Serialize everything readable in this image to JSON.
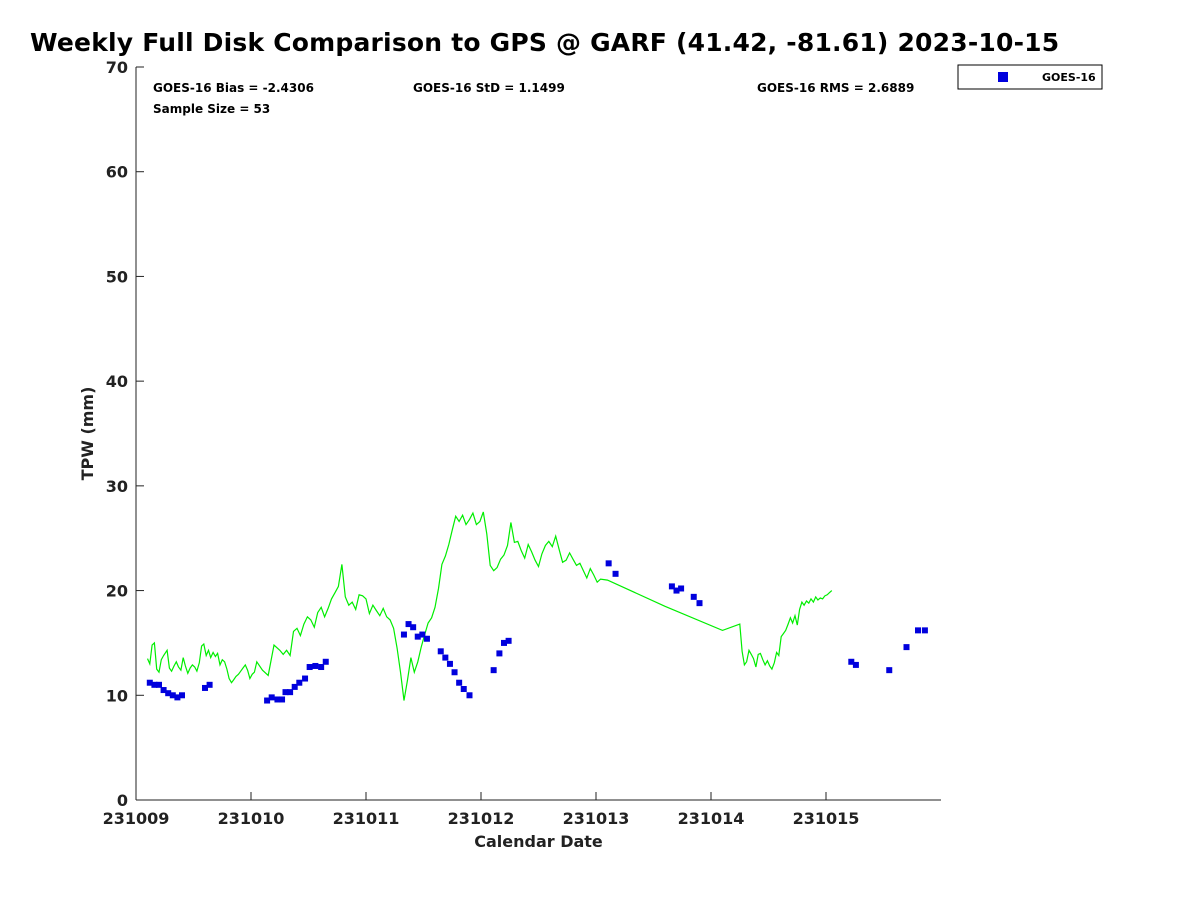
{
  "chart_data": {
    "type": "scatter",
    "title": "Weekly Full Disk Comparison to GPS @ GARF (41.42, -81.61) 2023-10-15",
    "xlabel": "Calendar Date",
    "ylabel": "TPW (mm)",
    "xlim": [
      231009,
      231016
    ],
    "ylim": [
      0,
      70
    ],
    "x_ticks": [
      231009,
      231010,
      231011,
      231012,
      231013,
      231014,
      231015
    ],
    "x_tick_labels": [
      "231009",
      "231010",
      "231011",
      "231012",
      "231013",
      "231014",
      "231015"
    ],
    "y_ticks": [
      0,
      10,
      20,
      30,
      40,
      50,
      60,
      70
    ],
    "grid": false,
    "legend_position": "outside-top-right",
    "stats": {
      "bias": "GOES-16 Bias = -2.4306",
      "std": "GOES-16 StD = 1.1499",
      "rms": "GOES-16 RMS = 2.6889",
      "sample_size": "Sample Size = 53"
    },
    "series": [
      {
        "name": "GPS",
        "kind": "line",
        "color": "#00ee00",
        "x": [
          0.0,
          0.02,
          0.04,
          0.06,
          0.08,
          0.1,
          0.12,
          0.14,
          0.17,
          0.19,
          0.21,
          0.23,
          0.25,
          0.27,
          0.29,
          0.31,
          0.33,
          0.35,
          0.37,
          0.39,
          0.41,
          0.43,
          0.45,
          0.47,
          0.49,
          0.51,
          0.53,
          0.55,
          0.57,
          0.59,
          0.61,
          0.63,
          0.65,
          0.67,
          0.69,
          0.71,
          0.73,
          0.75,
          0.77,
          0.79,
          0.81,
          0.83,
          0.85,
          0.87,
          0.89,
          0.91,
          0.93,
          0.95,
          1.0,
          1.05,
          1.1,
          1.15,
          1.18,
          1.21,
          1.24,
          1.27,
          1.3,
          1.33,
          1.36,
          1.39,
          1.42,
          1.45,
          1.48,
          1.51,
          1.54,
          1.57,
          1.6,
          1.63,
          1.66,
          1.69,
          1.72,
          1.75,
          1.78,
          1.81,
          1.84,
          1.87,
          1.9,
          1.93,
          1.96,
          1.99,
          2.02,
          2.05,
          2.08,
          2.11,
          2.14,
          2.17,
          2.2,
          2.23,
          2.26,
          2.29,
          2.32,
          2.35,
          2.38,
          2.41,
          2.44,
          2.47,
          2.5,
          2.53,
          2.56,
          2.59,
          2.62,
          2.65,
          2.68,
          2.71,
          2.74,
          2.77,
          2.8,
          2.83,
          2.86,
          2.89,
          2.92,
          2.95,
          2.98,
          3.01,
          3.04,
          3.07,
          3.1,
          3.13,
          3.16,
          3.19,
          3.22,
          3.25,
          3.28,
          3.31,
          3.34,
          3.37,
          3.4,
          3.43,
          3.46,
          3.49,
          3.52,
          3.55,
          3.58,
          3.61,
          3.64,
          3.67,
          3.7,
          3.73,
          3.76,
          3.79,
          3.82,
          3.85,
          3.88,
          3.91,
          3.94,
          4.0,
          4.5,
          5.0,
          5.15,
          5.17,
          5.19,
          5.21,
          5.23,
          5.25,
          5.27,
          5.29,
          5.31,
          5.33,
          5.35,
          5.37,
          5.39,
          5.41,
          5.43,
          5.45,
          5.47,
          5.49,
          5.51,
          5.53,
          5.55,
          5.57,
          5.59,
          5.61,
          5.63,
          5.65,
          5.67,
          5.69,
          5.71,
          5.73,
          5.75,
          5.77,
          5.79,
          5.81,
          5.83,
          5.85,
          5.87,
          5.89,
          5.91,
          5.93,
          5.95
        ],
        "y": [
          13.5,
          13.0,
          14.8,
          15.0,
          12.5,
          12.2,
          13.4,
          13.8,
          14.3,
          12.6,
          12.3,
          12.8,
          13.2,
          12.7,
          12.4,
          13.6,
          12.8,
          12.1,
          12.6,
          12.9,
          12.7,
          12.3,
          13.1,
          14.7,
          14.9,
          13.8,
          14.3,
          13.6,
          14.1,
          13.7,
          14.0,
          12.9,
          13.4,
          13.2,
          12.5,
          11.6,
          11.2,
          11.5,
          11.8,
          12.0,
          12.3,
          12.6,
          12.9,
          12.4,
          11.6,
          12.0,
          12.2,
          13.2,
          12.4,
          11.9,
          14.8,
          14.3,
          13.9,
          14.3,
          13.8,
          16.1,
          16.4,
          15.7,
          16.8,
          17.5,
          17.2,
          16.5,
          17.9,
          18.4,
          17.5,
          18.3,
          19.2,
          19.8,
          20.4,
          22.5,
          19.4,
          18.6,
          18.9,
          18.2,
          19.6,
          19.5,
          19.2,
          17.8,
          18.6,
          18.1,
          17.6,
          18.3,
          17.5,
          17.2,
          16.4,
          14.5,
          12.2,
          9.5,
          11.4,
          13.6,
          12.2,
          13.2,
          14.6,
          15.8,
          16.9,
          17.4,
          18.4,
          20.2,
          22.5,
          23.3,
          24.4,
          25.8,
          27.1,
          26.6,
          27.2,
          26.3,
          26.8,
          27.4,
          26.3,
          26.6,
          27.5,
          25.4,
          22.4,
          21.9,
          22.2,
          23.0,
          23.4,
          24.3,
          26.5,
          24.6,
          24.7,
          23.8,
          23.1,
          24.4,
          23.7,
          22.9,
          22.3,
          23.5,
          24.3,
          24.7,
          24.2,
          25.2,
          23.9,
          22.7,
          22.9,
          23.6,
          23.0,
          22.4,
          22.6,
          21.9,
          21.2,
          22.1,
          21.5,
          20.8,
          21.1,
          21.0,
          18.5,
          16.2,
          16.8,
          14.2,
          12.9,
          13.2,
          14.3,
          13.9,
          13.5,
          12.7,
          13.9,
          14.0,
          13.4,
          12.9,
          13.3,
          12.8,
          12.5,
          13.1,
          14.1,
          13.8,
          15.6,
          15.9,
          16.2,
          16.8,
          17.4,
          16.9,
          17.6,
          16.7,
          18.2,
          18.9,
          18.6,
          19.0,
          18.8,
          19.2,
          18.9,
          19.4,
          19.1,
          19.3,
          19.2,
          19.5,
          19.6,
          19.8,
          20.0
        ],
        "x_offset_base": 231009.1
      },
      {
        "name": "GOES-16",
        "kind": "scatter",
        "marker": "square",
        "color": "#0000dd",
        "x": [
          0.12,
          0.16,
          0.2,
          0.24,
          0.28,
          0.32,
          0.36,
          0.4,
          0.6,
          0.64,
          1.14,
          1.18,
          1.23,
          1.27,
          1.3,
          1.34,
          1.38,
          1.42,
          1.47,
          1.51,
          1.56,
          1.61,
          1.65,
          2.33,
          2.37,
          2.41,
          2.45,
          2.49,
          2.53,
          2.65,
          2.69,
          2.73,
          2.77,
          2.81,
          2.85,
          2.9,
          3.11,
          3.16,
          3.2,
          3.24,
          4.11,
          4.17,
          4.66,
          4.7,
          4.74,
          4.85,
          4.9,
          6.22,
          6.26,
          6.55,
          6.7,
          6.8,
          6.86
        ],
        "y": [
          11.2,
          11.0,
          11.0,
          10.5,
          10.2,
          10.0,
          9.8,
          10.0,
          10.7,
          11.0,
          9.5,
          9.8,
          9.6,
          9.6,
          10.3,
          10.3,
          10.8,
          11.2,
          11.6,
          12.7,
          12.8,
          12.7,
          13.2,
          15.8,
          16.8,
          16.5,
          15.6,
          15.8,
          15.4,
          14.2,
          13.6,
          13.0,
          12.2,
          11.2,
          10.6,
          10.0,
          12.4,
          14.0,
          15.0,
          15.2,
          22.6,
          21.6,
          20.4,
          20.0,
          20.2,
          19.4,
          18.8,
          13.2,
          12.9,
          12.4,
          14.6,
          16.2,
          16.2
        ],
        "x_offset_base": 231009.0
      }
    ],
    "legend": [
      "GOES-16"
    ]
  }
}
